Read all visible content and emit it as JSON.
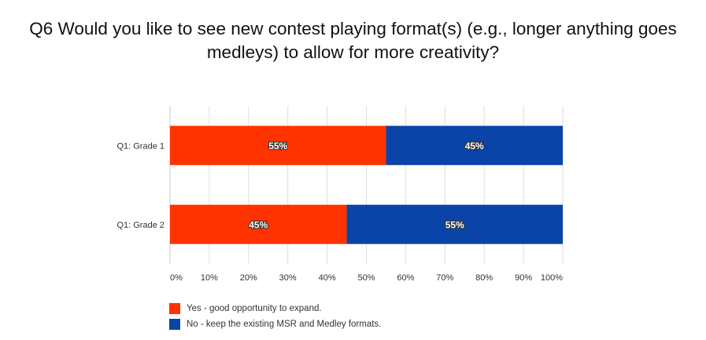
{
  "chart_data": {
    "type": "bar",
    "orientation": "horizontal",
    "stacked": true,
    "title": "Q6 Would you like to see new contest playing format(s) (e.g., longer anything goes medleys) to allow for more creativity?",
    "title_lines": [
      "Q6 Would you like to see new contest playing format(s) (e.g., longer anything goes",
      "medleys) to allow for more creativity?"
    ],
    "categories": [
      "Q1: Grade 1",
      "Q1: Grade 2"
    ],
    "series": [
      {
        "name": "Yes - good opportunity to expand.",
        "values": [
          55,
          45
        ],
        "color": "#ff3300"
      },
      {
        "name": "No - keep the existing MSR and Medley formats.",
        "values": [
          45,
          55
        ],
        "color": "#0a44a8"
      }
    ],
    "data_labels": [
      [
        "55%",
        "45%"
      ],
      [
        "45%",
        "55%"
      ]
    ],
    "xlim": [
      0,
      100
    ],
    "xticks": [
      "0%",
      "10%",
      "20%",
      "30%",
      "40%",
      "50%",
      "60%",
      "70%",
      "80%",
      "90%",
      "100%"
    ],
    "grid": true,
    "legend_position": "bottom-left"
  }
}
